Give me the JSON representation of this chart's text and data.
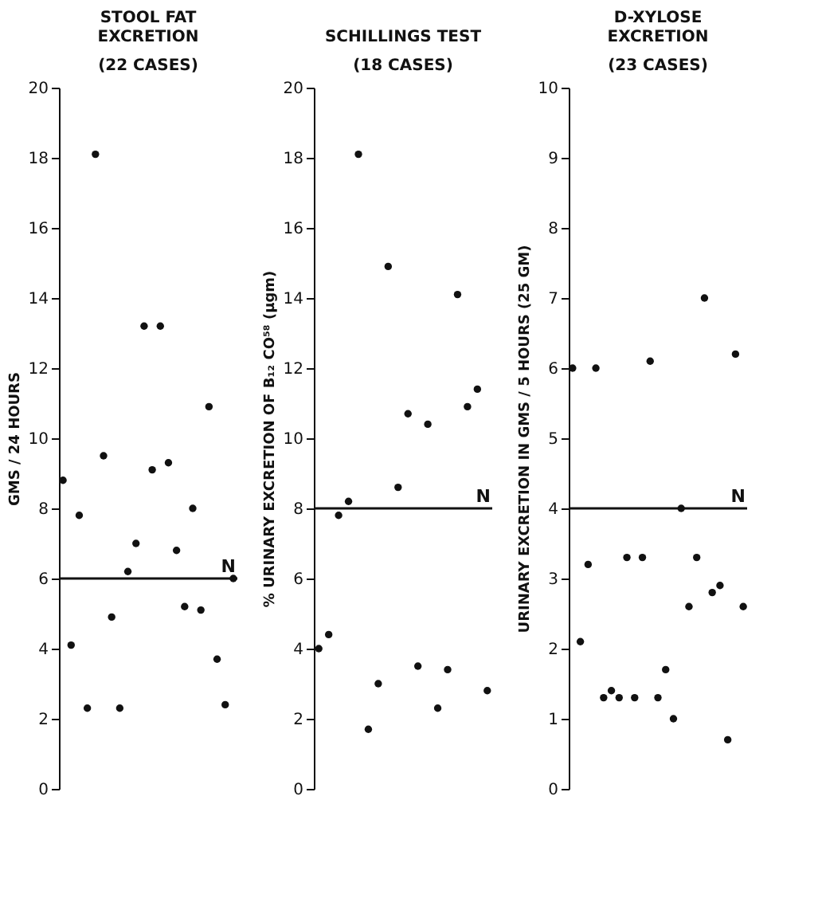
{
  "chart_data": [
    {
      "type": "scatter",
      "title": "STOOL FAT EXCRETION",
      "subtitle": "(22 CASES)",
      "ylabel": "GMS / 24 HOURS",
      "categories": [
        null,
        null,
        null,
        null,
        null,
        null,
        null,
        null,
        null,
        null,
        null,
        null,
        null,
        null,
        null,
        null,
        null,
        null,
        null,
        null,
        null,
        null
      ],
      "series": [
        {
          "color": "#111111",
          "values": [
            8.8,
            4.1,
            7.8,
            2.3,
            18.1,
            9.5,
            4.9,
            2.3,
            6.2,
            7.0,
            13.2,
            9.1,
            13.2,
            9.3,
            6.8,
            5.2,
            8.0,
            5.1,
            10.9,
            3.7,
            2.4,
            6.0
          ]
        }
      ],
      "ylim": [
        0,
        20
      ],
      "yticks": [
        0,
        2,
        4,
        6,
        8,
        10,
        12,
        14,
        16,
        18,
        20
      ],
      "marker": "circle",
      "grid": false,
      "tick_labels": "y",
      "ref_lines": [
        {
          "axis": "y",
          "value": 6,
          "label": "N",
          "color": "#111111"
        }
      ]
    },
    {
      "type": "scatter",
      "title": "SCHILLINGS TEST",
      "subtitle": "(18 CASES)",
      "ylabel": "% URINARY EXCRETION OF B₁₂ CO⁵⁸ (µgm)",
      "categories": [
        null,
        null,
        null,
        null,
        null,
        null,
        null,
        null,
        null,
        null,
        null,
        null,
        null,
        null,
        null,
        null,
        null,
        null
      ],
      "series": [
        {
          "color": "#111111",
          "values": [
            4.0,
            4.4,
            7.8,
            8.2,
            18.1,
            1.7,
            3.0,
            14.9,
            8.6,
            10.7,
            3.5,
            10.4,
            2.3,
            3.4,
            14.1,
            10.9,
            11.4,
            2.8
          ]
        }
      ],
      "ylim": [
        0,
        20
      ],
      "yticks": [
        0,
        2,
        4,
        6,
        8,
        10,
        12,
        14,
        16,
        18,
        20
      ],
      "marker": "circle",
      "grid": false,
      "tick_labels": "y",
      "ref_lines": [
        {
          "axis": "y",
          "value": 8,
          "label": "N",
          "color": "#111111"
        }
      ]
    },
    {
      "type": "scatter",
      "title": "D-XYLOSE EXCRETION",
      "subtitle": "(23 CASES)",
      "ylabel": "URINARY EXCRETION IN GMS / 5 HOURS (25 GM)",
      "categories": [
        null,
        null,
        null,
        null,
        null,
        null,
        null,
        null,
        null,
        null,
        null,
        null,
        null,
        null,
        null,
        null,
        null,
        null,
        null,
        null,
        null,
        null,
        null
      ],
      "series": [
        {
          "color": "#111111",
          "values": [
            6.0,
            2.1,
            3.2,
            6.0,
            1.3,
            1.4,
            1.3,
            3.3,
            1.3,
            3.3,
            6.1,
            1.3,
            1.7,
            1.0,
            4.0,
            2.6,
            3.3,
            7.0,
            2.8,
            2.9,
            0.7,
            6.2,
            2.6
          ]
        }
      ],
      "ylim": [
        0,
        10
      ],
      "yticks": [
        0,
        1,
        2,
        3,
        4,
        5,
        6,
        7,
        8,
        9,
        10
      ],
      "marker": "circle",
      "grid": false,
      "tick_labels": "y",
      "ref_lines": [
        {
          "axis": "y",
          "value": 4,
          "label": "N",
          "color": "#111111"
        }
      ]
    }
  ]
}
